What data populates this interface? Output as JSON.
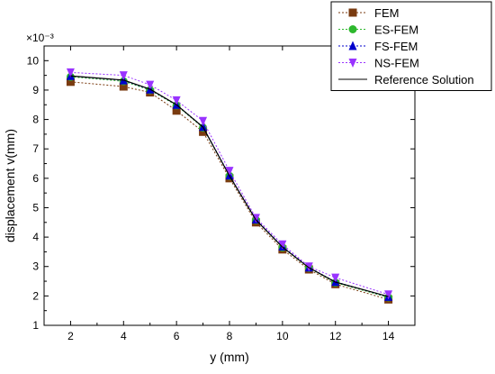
{
  "chart_data": {
    "type": "line",
    "xlabel": "y (mm)",
    "ylabel": "displacement v(mm)",
    "y_multiplier_label": "×10⁻³",
    "xlim": [
      1,
      15
    ],
    "ylim": [
      1,
      10.5
    ],
    "xticks": [
      2,
      4,
      6,
      8,
      10,
      12,
      14
    ],
    "yticks": [
      1,
      2,
      3,
      4,
      5,
      6,
      7,
      8,
      9,
      10
    ],
    "legend_position": "top-right",
    "grid": false,
    "x": [
      2,
      4,
      5,
      6,
      7,
      8,
      9,
      10,
      11,
      12,
      14
    ],
    "series": [
      {
        "name": "FEM",
        "color": "#7a3b10",
        "marker": "square",
        "line": "dotted",
        "values": [
          9.28,
          9.12,
          8.92,
          8.3,
          7.58,
          6.0,
          4.5,
          3.58,
          2.9,
          2.4,
          1.88
        ]
      },
      {
        "name": "ES-FEM",
        "color": "#2eb82e",
        "marker": "circle",
        "line": "dotted",
        "values": [
          9.45,
          9.3,
          9.0,
          8.48,
          7.72,
          6.08,
          4.58,
          3.65,
          2.95,
          2.45,
          1.95
        ]
      },
      {
        "name": "FS-FEM",
        "color": "#0000cc",
        "marker": "triangle-up",
        "line": "dotted",
        "values": [
          9.48,
          9.33,
          9.02,
          8.5,
          7.75,
          6.1,
          4.6,
          3.68,
          2.97,
          2.48,
          1.97
        ]
      },
      {
        "name": "NS-FEM",
        "color": "#9933ff",
        "marker": "triangle-down",
        "line": "dotted",
        "values": [
          9.6,
          9.5,
          9.18,
          8.65,
          7.95,
          6.25,
          4.65,
          3.75,
          3.0,
          2.62,
          2.05
        ]
      },
      {
        "name": "Reference Solution",
        "color": "#000000",
        "marker": "none",
        "line": "solid",
        "values": [
          9.48,
          9.34,
          9.03,
          8.5,
          7.74,
          6.08,
          4.58,
          3.66,
          2.96,
          2.47,
          1.98
        ]
      }
    ]
  }
}
